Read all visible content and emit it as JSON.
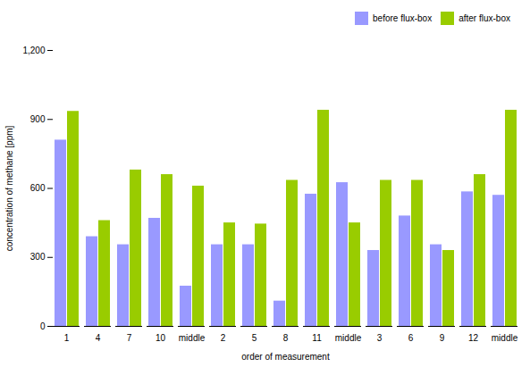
{
  "chart_data": {
    "type": "bar",
    "categories": [
      "1",
      "4",
      "7",
      "10",
      "middle",
      "2",
      "5",
      "8",
      "11",
      "middle",
      "3",
      "6",
      "9",
      "12",
      "middle"
    ],
    "series": [
      {
        "name": "before flux-box",
        "color": "#9999ff",
        "values": [
          810,
          390,
          355,
          470,
          175,
          355,
          355,
          110,
          575,
          625,
          330,
          480,
          355,
          585,
          570
        ]
      },
      {
        "name": "after flux-box",
        "color": "#99cc00",
        "values": [
          935,
          460,
          680,
          660,
          610,
          450,
          445,
          635,
          940,
          450,
          635,
          635,
          330,
          660,
          940
        ]
      }
    ],
    "xlabel": "order of measurement",
    "ylabel": "concentration of methane [ppm]",
    "ylim": [
      0,
      1200
    ],
    "yticks": [
      0,
      300,
      600,
      900,
      1200
    ],
    "legend": "upper right",
    "grid": false
  }
}
